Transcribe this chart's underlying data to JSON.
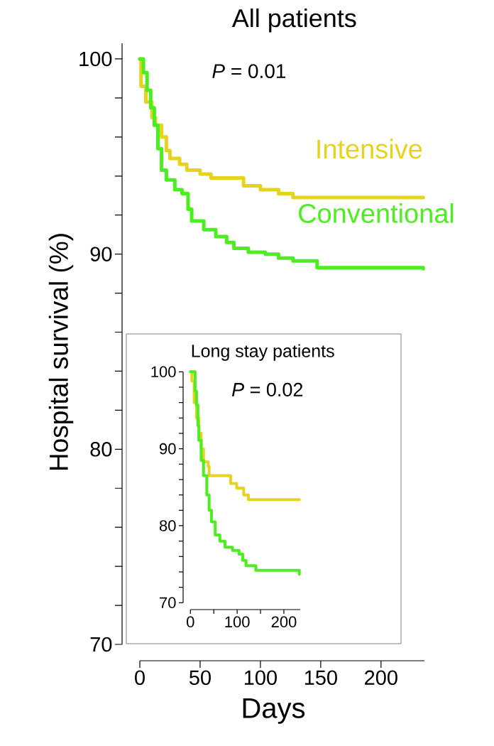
{
  "chart_data": [
    {
      "type": "step",
      "title": "All patients",
      "xlabel": "Days",
      "ylabel": "Hospital survival (%)",
      "annotations": [
        "*P* = 0.01"
      ],
      "xlim": [
        0,
        236
      ],
      "ylim": [
        70,
        100.8
      ],
      "xticks": [
        0,
        50,
        100,
        150,
        200
      ],
      "yticks": [
        70,
        80,
        90,
        100
      ],
      "series": [
        {
          "name": "Intensive",
          "color": "#e5d320",
          "x": [
            0,
            1,
            5,
            10,
            13,
            18,
            22,
            25,
            33,
            39,
            50,
            59,
            86,
            100,
            115,
            127,
            235
          ],
          "values": [
            100,
            98.6,
            97.8,
            97.0,
            96.6,
            96.0,
            95.3,
            94.9,
            94.6,
            94.3,
            94.1,
            93.9,
            93.5,
            93.3,
            93.1,
            92.9,
            92.9
          ]
        },
        {
          "name": "Conventional",
          "color": "#4cee22",
          "x": [
            0,
            3,
            6,
            9,
            12,
            15,
            18,
            22,
            29,
            35,
            40,
            43,
            53,
            63,
            72,
            78,
            90,
            104,
            115,
            127,
            147,
            235
          ],
          "values": [
            100,
            99.3,
            98.4,
            97.5,
            96.6,
            95.4,
            94.3,
            93.8,
            93.3,
            93.1,
            92.3,
            91.7,
            91.25,
            90.9,
            90.6,
            90.3,
            90.1,
            90.0,
            89.8,
            89.65,
            89.3,
            89.25
          ]
        }
      ]
    },
    {
      "type": "step",
      "title": "Long stay patients",
      "annotations": [
        "*P* = 0.02"
      ],
      "xlim": [
        0,
        235
      ],
      "ylim": [
        70,
        100
      ],
      "xticks": [
        0,
        {
          "value": 50,
          "label": null
        },
        100,
        {
          "value": 150,
          "label": null
        },
        200
      ],
      "yticks": [
        70,
        {
          "value": 72,
          "label": null
        },
        {
          "value": 74,
          "label": null
        },
        {
          "value": 76,
          "label": null
        },
        {
          "value": 78,
          "label": null
        },
        80,
        {
          "value": 82,
          "label": null
        },
        {
          "value": 84,
          "label": null
        },
        {
          "value": 86,
          "label": null
        },
        {
          "value": 88,
          "label": null
        },
        90,
        {
          "value": 92,
          "label": null
        },
        {
          "value": 94,
          "label": null
        },
        {
          "value": 96,
          "label": null
        },
        {
          "value": 98,
          "label": null
        },
        100
      ],
      "series": [
        {
          "color": "#e5d320",
          "x": [
            0,
            3,
            8,
            13,
            18,
            23,
            28,
            38,
            40,
            83,
            86,
            99,
            114,
            124,
            233
          ],
          "values": [
            100,
            98.8,
            96,
            94,
            92,
            90,
            88.3,
            87.7,
            86.5,
            86.5,
            85.5,
            84.9,
            84.0,
            83.4,
            83.4
          ]
        },
        {
          "color": "#4cee22",
          "x": [
            0,
            8,
            10,
            13,
            16,
            18,
            23,
            28,
            35,
            40,
            45,
            53,
            63,
            74,
            90,
            104,
            112,
            119,
            140,
            226,
            233
          ],
          "values": [
            100,
            100,
            97.5,
            95.7,
            93,
            91.1,
            88.5,
            86.5,
            84,
            82,
            80.5,
            78.8,
            78,
            77.2,
            76.8,
            76.3,
            75.5,
            74.8,
            74.2,
            74.2,
            73.7
          ]
        }
      ]
    }
  ]
}
